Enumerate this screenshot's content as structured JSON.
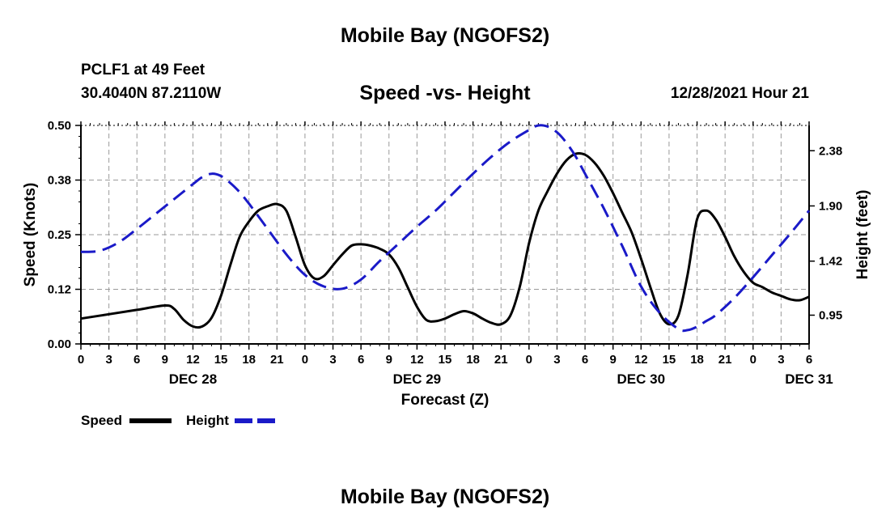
{
  "header": {
    "title": "Mobile Bay (NGOFS2)",
    "station": "PCLF1 at 49 Feet",
    "coords": "30.4040N  87.2110W",
    "subtitle": "Speed -vs- Height",
    "datetime": "12/28/2021 Hour 21"
  },
  "footer": {
    "title": "Mobile Bay (NGOFS2)"
  },
  "colors": {
    "speed": "#000000",
    "height": "#1a1ac8",
    "grid": "#9a9a9a"
  },
  "chart_data": {
    "type": "line",
    "title": "Speed -vs- Height",
    "xlabel": "Forecast (Z)",
    "ylabel": "Speed (Knots)",
    "y2label": "Height (feet)",
    "xlim": [
      0,
      78
    ],
    "ylim": [
      0,
      0.5
    ],
    "y2lim": [
      0.7,
      2.6
    ],
    "grid": true,
    "x_ticks": [
      0,
      3,
      6,
      9,
      12,
      15,
      18,
      21,
      24,
      27,
      30,
      33,
      36,
      39,
      42,
      45,
      48,
      51,
      54,
      57,
      60,
      63,
      66,
      69,
      72,
      75,
      78
    ],
    "x_tick_labels": [
      "0",
      "3",
      "6",
      "9",
      "12",
      "15",
      "18",
      "21",
      "0",
      "3",
      "6",
      "9",
      "12",
      "15",
      "18",
      "21",
      "0",
      "3",
      "6",
      "9",
      "12",
      "15",
      "18",
      "21",
      "0",
      "3",
      "6"
    ],
    "y_ticks": [
      0,
      0.125,
      0.25,
      0.375,
      0.5
    ],
    "y_tick_labels": [
      "0.00",
      "0.12",
      "0.25",
      "0.38",
      "0.50"
    ],
    "y2_ticks": [
      0.95,
      1.42,
      1.9,
      2.38
    ],
    "y2_tick_labels": [
      "0.95",
      "1.42",
      "1.90",
      "2.38"
    ],
    "day_labels": [
      {
        "x": 12,
        "label": "DEC 28"
      },
      {
        "x": 36,
        "label": "DEC 29"
      },
      {
        "x": 60,
        "label": "DEC 30"
      },
      {
        "x": 78,
        "label": "DEC 31"
      }
    ],
    "legend": [
      {
        "name": "Speed",
        "style": "solid"
      },
      {
        "name": "Height",
        "style": "dashed"
      }
    ],
    "legend_position": "bottom-left",
    "series": [
      {
        "name": "Speed",
        "axis": "left",
        "x": [
          0,
          3,
          6,
          9,
          10,
          11,
          12,
          13,
          14,
          15,
          16,
          17,
          18,
          19,
          20,
          21,
          22,
          23,
          24,
          25,
          26,
          27,
          28,
          29,
          30,
          31,
          32,
          33,
          34,
          35,
          36,
          37,
          38,
          39,
          40,
          41,
          42,
          43,
          44,
          45,
          46,
          47,
          48,
          49,
          50,
          51,
          52,
          53,
          54,
          55,
          56,
          57,
          58,
          59,
          60,
          61,
          62,
          63,
          64,
          65,
          66,
          67,
          68,
          69,
          70,
          71,
          72,
          73,
          74,
          75,
          76,
          77,
          78
        ],
        "values": [
          0.058,
          0.068,
          0.078,
          0.088,
          0.08,
          0.055,
          0.04,
          0.04,
          0.06,
          0.11,
          0.18,
          0.245,
          0.28,
          0.305,
          0.315,
          0.32,
          0.305,
          0.245,
          0.18,
          0.15,
          0.155,
          0.18,
          0.205,
          0.225,
          0.228,
          0.225,
          0.218,
          0.205,
          0.175,
          0.13,
          0.085,
          0.055,
          0.052,
          0.058,
          0.068,
          0.075,
          0.07,
          0.058,
          0.048,
          0.045,
          0.065,
          0.13,
          0.23,
          0.305,
          0.35,
          0.39,
          0.42,
          0.435,
          0.433,
          0.415,
          0.385,
          0.345,
          0.3,
          0.255,
          0.195,
          0.13,
          0.07,
          0.045,
          0.065,
          0.16,
          0.285,
          0.305,
          0.285,
          0.245,
          0.2,
          0.165,
          0.14,
          0.13,
          0.118,
          0.11,
          0.102,
          0.1,
          0.108
        ]
      },
      {
        "name": "Height",
        "axis": "right",
        "x": [
          0,
          2,
          4,
          6,
          8,
          10,
          12,
          13,
          14,
          15,
          16,
          17,
          18,
          20,
          22,
          24,
          26,
          28,
          30,
          32,
          34,
          36,
          38,
          40,
          42,
          44,
          46,
          48,
          49,
          50,
          51,
          52,
          53,
          54,
          56,
          58,
          60,
          62,
          64,
          65,
          66,
          67,
          68,
          70,
          72,
          74,
          76,
          78
        ],
        "values": [
          1.5,
          1.51,
          1.58,
          1.7,
          1.83,
          1.96,
          2.09,
          2.15,
          2.18,
          2.16,
          2.1,
          2.02,
          1.92,
          1.7,
          1.48,
          1.3,
          1.2,
          1.18,
          1.26,
          1.42,
          1.57,
          1.72,
          1.86,
          2.02,
          2.18,
          2.33,
          2.46,
          2.56,
          2.6,
          2.59,
          2.54,
          2.45,
          2.33,
          2.18,
          1.88,
          1.55,
          1.2,
          0.97,
          0.83,
          0.82,
          0.85,
          0.9,
          0.95,
          1.1,
          1.28,
          1.47,
          1.66,
          1.86
        ]
      }
    ]
  }
}
